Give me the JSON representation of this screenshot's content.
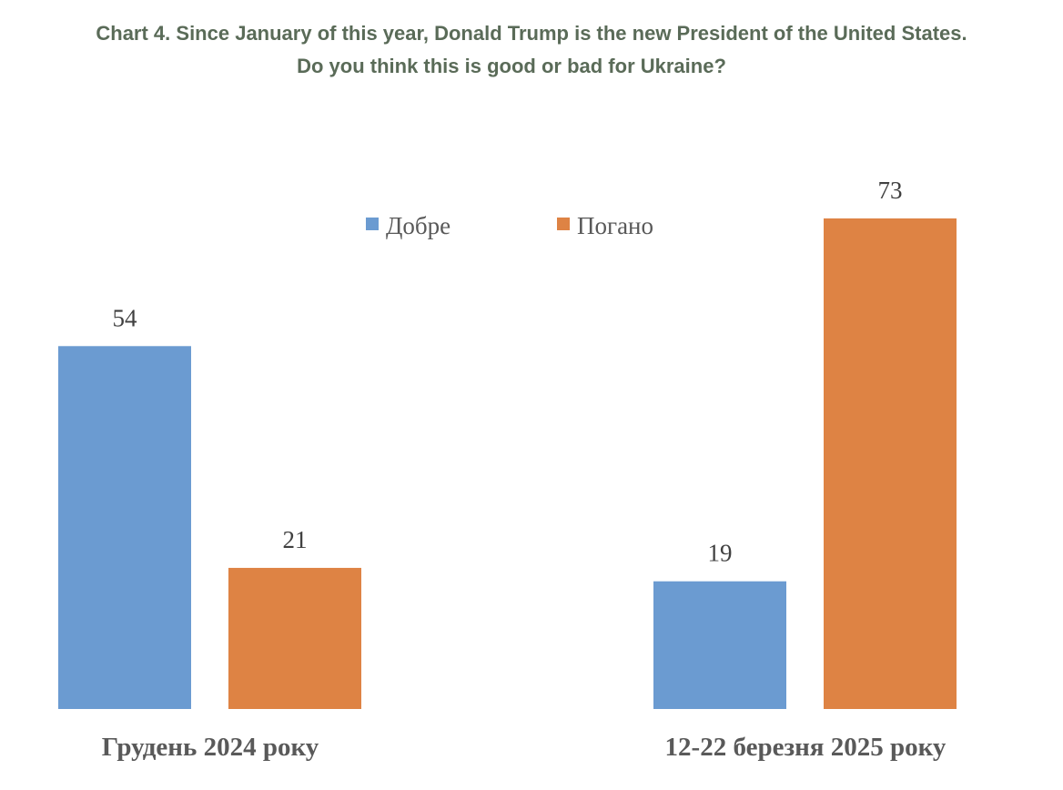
{
  "chart_data": {
    "type": "bar",
    "title": "Chart 4. Since January of this year, Donald Trump is the new President of the United States.",
    "subtitle": "Do you think this is good or bad for Ukraine?",
    "categories": [
      "Грудень 2024 року",
      "12-22 березня 2025 року"
    ],
    "series": [
      {
        "name": "Добре",
        "color": "#6b9bd1",
        "values": [
          54,
          19
        ]
      },
      {
        "name": "Погано",
        "color": "#de8344",
        "values": [
          21,
          73
        ]
      }
    ],
    "ylim": [
      0,
      73
    ],
    "grid": false,
    "legend_position": "top-center"
  }
}
